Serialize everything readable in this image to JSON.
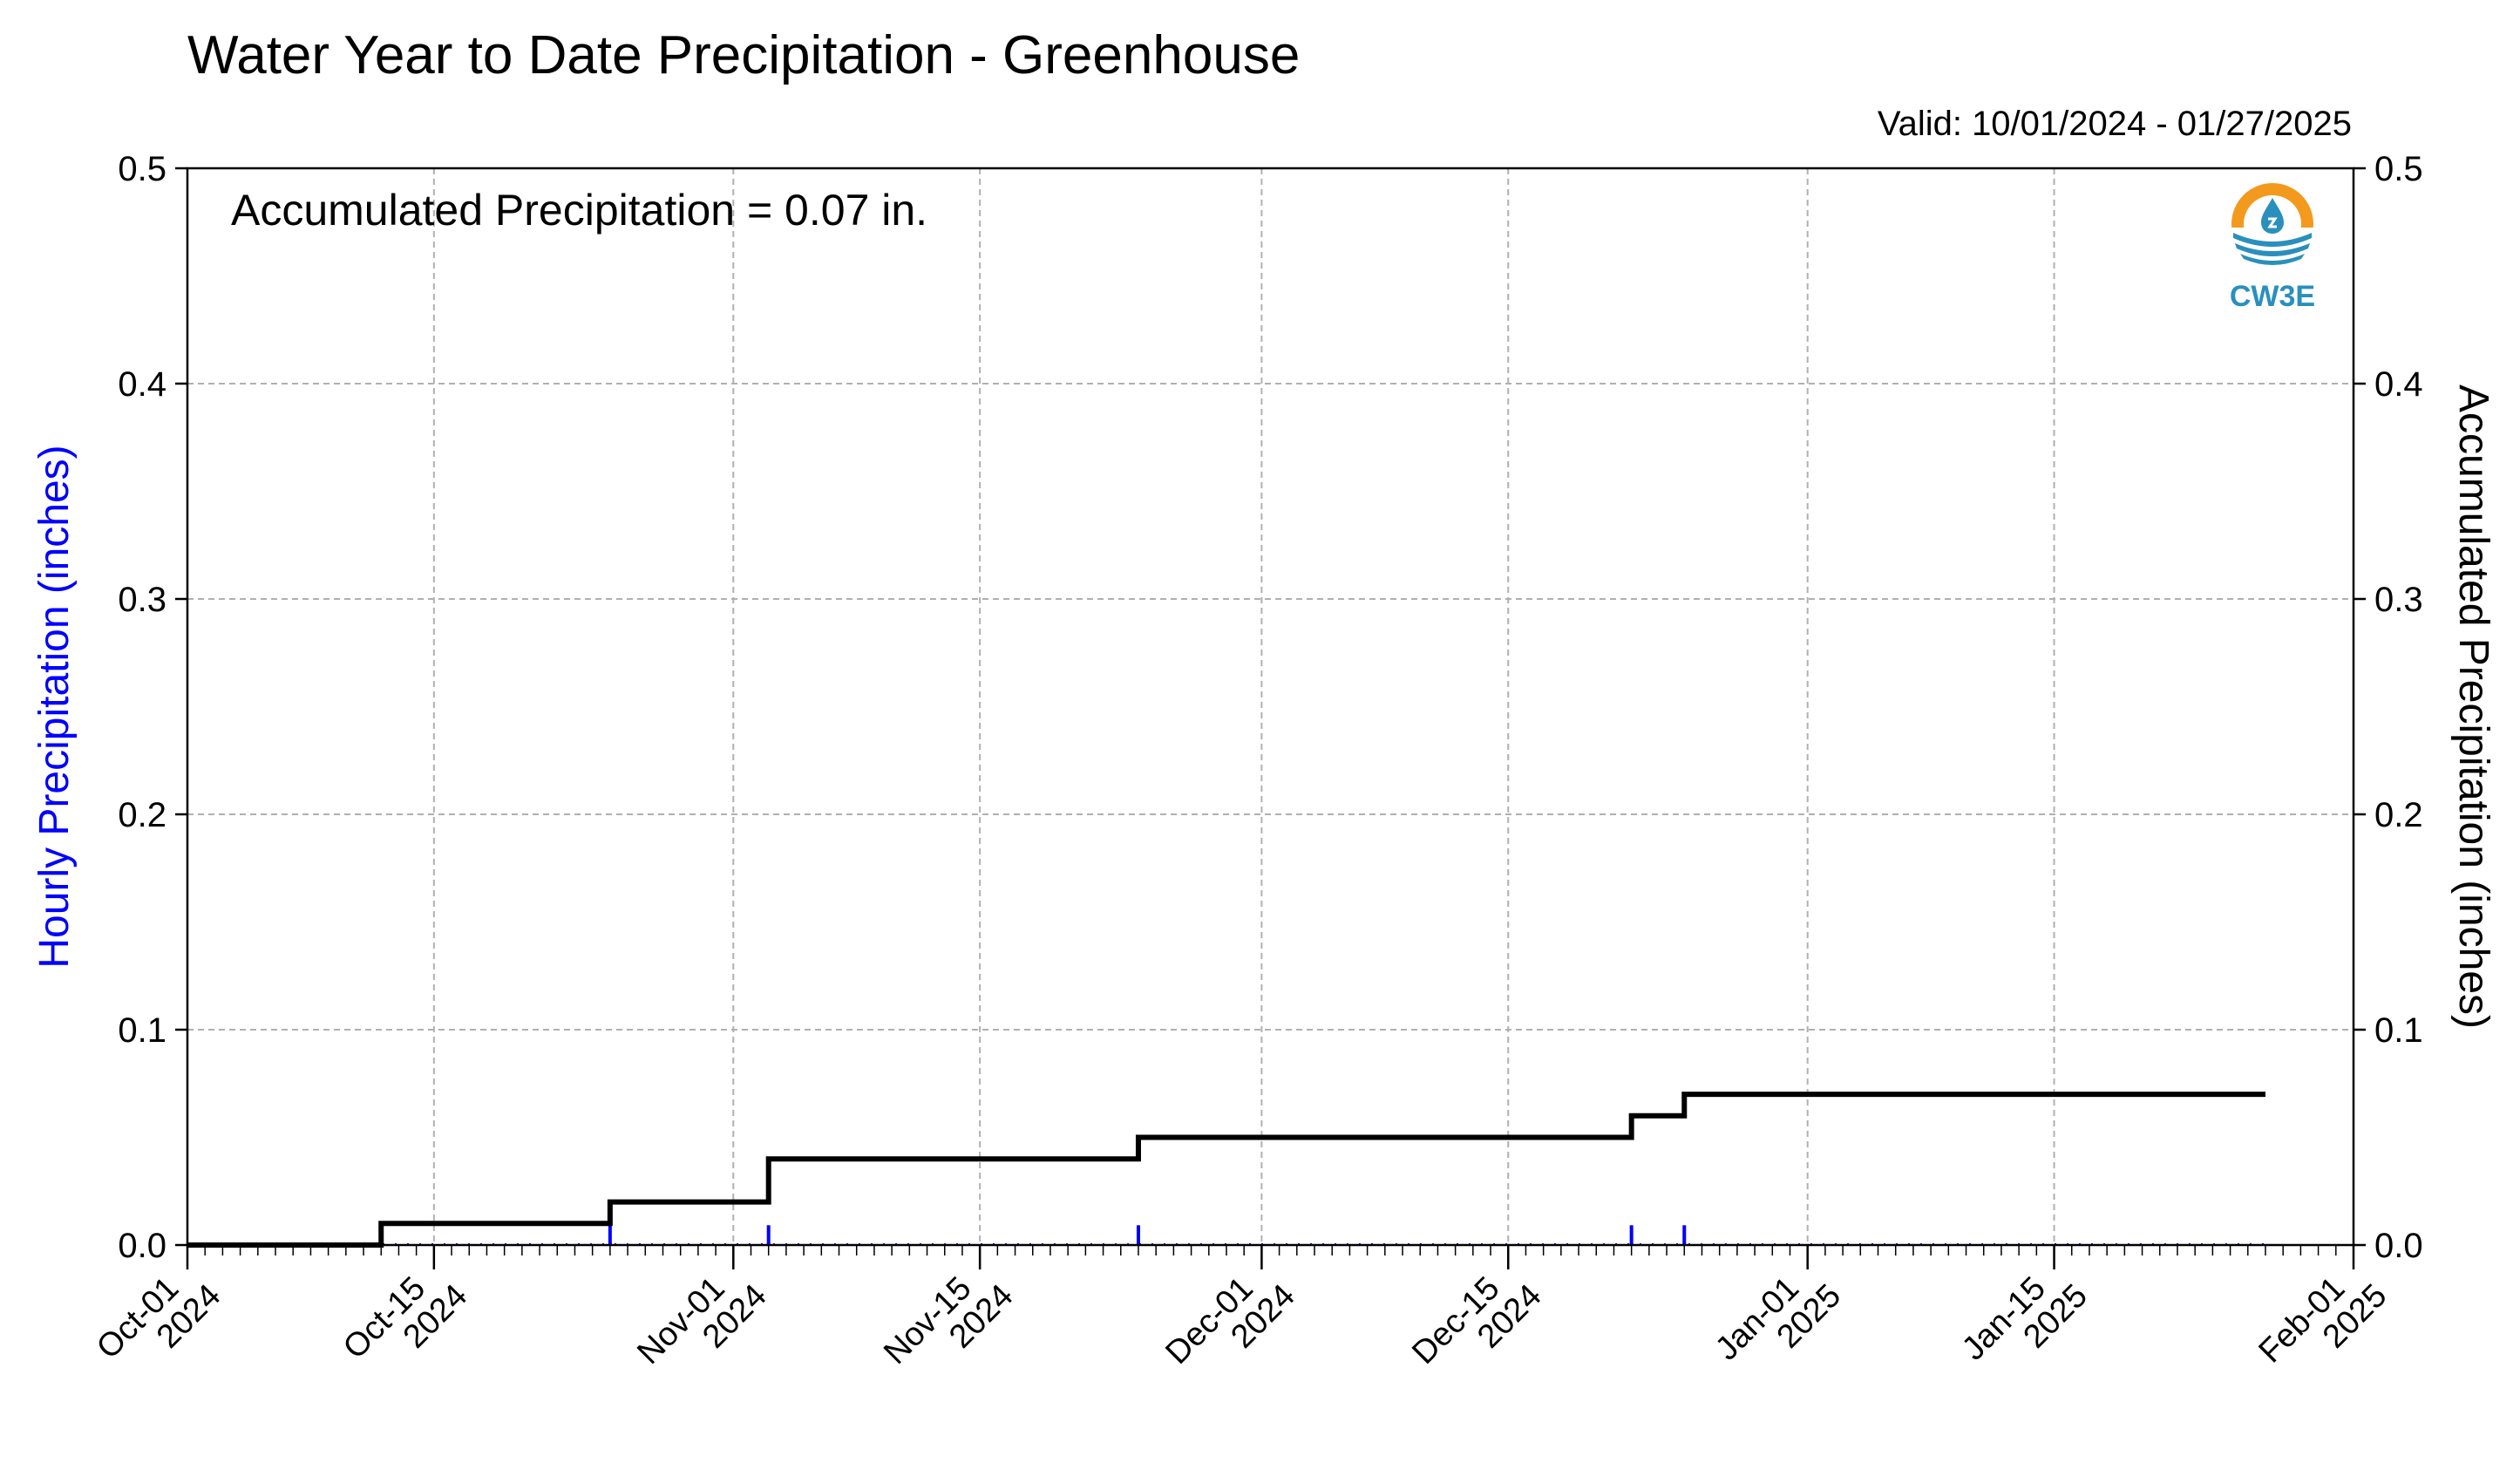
{
  "header": {
    "title": "Water Year to Date Precipitation - Greenhouse",
    "valid": "Valid: 10/01/2024 - 01/27/2025"
  },
  "annotation": {
    "text": "Accumulated Precipitation = 0.07 in."
  },
  "logo": {
    "text": "CW3E",
    "icon": "water-drop-wave-logo"
  },
  "colors": {
    "hourly": "#0000ff",
    "accumulated": "#000000",
    "grid": "#b0b0b0",
    "logo_orange": "#f39a1e",
    "logo_blue": "#2a8fbd"
  },
  "chart_data": {
    "type": "line",
    "grid": true,
    "xlim": [
      "2024-10-01",
      "2025-02-01"
    ],
    "x_ticks": [
      {
        "date": "2024-10-01",
        "label": [
          "Oct-01",
          "2024"
        ]
      },
      {
        "date": "2024-10-15",
        "label": [
          "Oct-15",
          "2024"
        ]
      },
      {
        "date": "2024-11-01",
        "label": [
          "Nov-01",
          "2024"
        ]
      },
      {
        "date": "2024-11-15",
        "label": [
          "Nov-15",
          "2024"
        ]
      },
      {
        "date": "2024-12-01",
        "label": [
          "Dec-01",
          "2024"
        ]
      },
      {
        "date": "2024-12-15",
        "label": [
          "Dec-15",
          "2024"
        ]
      },
      {
        "date": "2025-01-01",
        "label": [
          "Jan-01",
          "2025"
        ]
      },
      {
        "date": "2025-01-15",
        "label": [
          "Jan-15",
          "2025"
        ]
      },
      {
        "date": "2025-02-01",
        "label": [
          "Feb-01",
          "2025"
        ]
      }
    ],
    "y_left": {
      "label": "Hourly Precipitation (inches)",
      "ylim": [
        0,
        0.5
      ],
      "ticks": [
        "0.0",
        "0.1",
        "0.2",
        "0.3",
        "0.4",
        "0.5"
      ]
    },
    "y_right": {
      "label": "Accumulated Precipitation (inches)",
      "ylim": [
        0,
        0.5
      ],
      "ticks": [
        "0.0",
        "0.1",
        "0.2",
        "0.3",
        "0.4",
        "0.5"
      ]
    },
    "series": [
      {
        "type": "bar",
        "axis": "left",
        "color": "#0000ff",
        "x": [
          "2024-10-12",
          "2024-10-25",
          "2024-11-03",
          "2024-11-24",
          "2024-12-22",
          "2024-12-25"
        ],
        "values": [
          0.01,
          0.01,
          0.01,
          0.01,
          0.01,
          0.01
        ]
      },
      {
        "type": "step",
        "axis": "right",
        "color": "#000000",
        "x": [
          "2024-10-01",
          "2024-10-12",
          "2024-10-25",
          "2024-11-03",
          "2024-11-24",
          "2024-12-22",
          "2024-12-25",
          "2025-01-27"
        ],
        "values": [
          0.0,
          0.01,
          0.02,
          0.04,
          0.05,
          0.06,
          0.07,
          0.07
        ]
      }
    ]
  }
}
